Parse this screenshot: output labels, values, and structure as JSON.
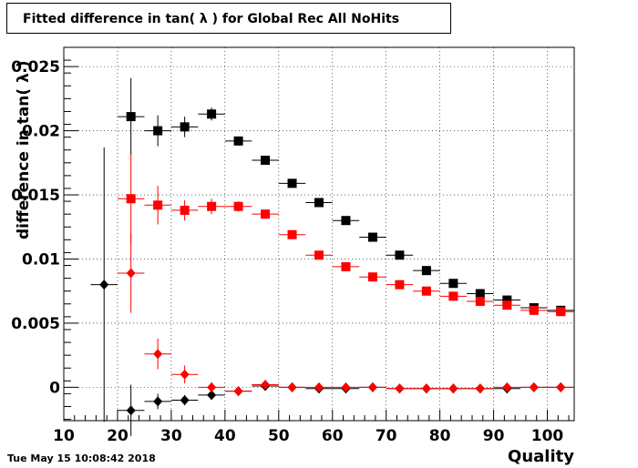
{
  "title": "Fitted difference in tan( λ ) for Global Rec All NoHits",
  "timestamp": "Tue May 15 10:08:42 2018",
  "chart_data": {
    "type": "scatter",
    "xlabel": "Quality",
    "ylabel": "difference in tan( λ )",
    "xlim": [
      10,
      105
    ],
    "ylim": [
      -0.0026,
      0.0265
    ],
    "grid": true,
    "x_ticks": [
      {
        "value": 10,
        "label": "10"
      },
      {
        "value": 20,
        "label": "20"
      },
      {
        "value": 30,
        "label": "30"
      },
      {
        "value": 40,
        "label": "40"
      },
      {
        "value": 50,
        "label": "50"
      },
      {
        "value": 60,
        "label": "60"
      },
      {
        "value": 70,
        "label": "70"
      },
      {
        "value": 80,
        "label": "80"
      },
      {
        "value": 90,
        "label": "90"
      },
      {
        "value": 100,
        "label": "100"
      }
    ],
    "y_ticks": [
      {
        "value": 0,
        "label": "0"
      },
      {
        "value": 0.005,
        "label": "0.005"
      },
      {
        "value": 0.01,
        "label": "0.01"
      },
      {
        "value": 0.015,
        "label": "0.015"
      },
      {
        "value": 0.02,
        "label": "0.02"
      },
      {
        "value": 0.025,
        "label": "0.025"
      }
    ],
    "series": [
      {
        "marker": "square",
        "color": "#000000",
        "points": [
          {
            "x": 22.5,
            "y": 0.0211,
            "err": 0.003
          },
          {
            "x": 27.5,
            "y": 0.02,
            "err": 0.0012
          },
          {
            "x": 32.5,
            "y": 0.0203,
            "err": 0.0008
          },
          {
            "x": 37.5,
            "y": 0.0213,
            "err": 0.0005
          },
          {
            "x": 42.5,
            "y": 0.0192,
            "err": 0.0003
          },
          {
            "x": 47.5,
            "y": 0.0177,
            "err": 0.0002
          },
          {
            "x": 52.5,
            "y": 0.0159,
            "err": 0.0002
          },
          {
            "x": 57.5,
            "y": 0.0144,
            "err": 0.0002
          },
          {
            "x": 62.5,
            "y": 0.013,
            "err": 0.0002
          },
          {
            "x": 67.5,
            "y": 0.0117,
            "err": 0.0002
          },
          {
            "x": 72.5,
            "y": 0.0103,
            "err": 0.0002
          },
          {
            "x": 77.5,
            "y": 0.0091,
            "err": 0.0002
          },
          {
            "x": 82.5,
            "y": 0.0081,
            "err": 0.0002
          },
          {
            "x": 87.5,
            "y": 0.0073,
            "err": 0.0002
          },
          {
            "x": 92.5,
            "y": 0.0068,
            "err": 0.0002
          },
          {
            "x": 97.5,
            "y": 0.0062,
            "err": 0.0002
          },
          {
            "x": 102.5,
            "y": 0.006,
            "err": 0.0002
          }
        ]
      },
      {
        "marker": "square",
        "color": "#ff0000",
        "points": [
          {
            "x": 22.5,
            "y": 0.0147,
            "err": 0.0035
          },
          {
            "x": 27.5,
            "y": 0.0142,
            "err": 0.0015
          },
          {
            "x": 32.5,
            "y": 0.0138,
            "err": 0.0008
          },
          {
            "x": 37.5,
            "y": 0.0141,
            "err": 0.0006
          },
          {
            "x": 42.5,
            "y": 0.0141,
            "err": 0.0004
          },
          {
            "x": 47.5,
            "y": 0.0135,
            "err": 0.0003
          },
          {
            "x": 52.5,
            "y": 0.0119,
            "err": 0.0002
          },
          {
            "x": 57.5,
            "y": 0.0103,
            "err": 0.0002
          },
          {
            "x": 62.5,
            "y": 0.0094,
            "err": 0.0002
          },
          {
            "x": 67.5,
            "y": 0.0086,
            "err": 0.0002
          },
          {
            "x": 72.5,
            "y": 0.008,
            "err": 0.0002
          },
          {
            "x": 77.5,
            "y": 0.0075,
            "err": 0.0002
          },
          {
            "x": 82.5,
            "y": 0.0071,
            "err": 0.0002
          },
          {
            "x": 87.5,
            "y": 0.0067,
            "err": 0.0002
          },
          {
            "x": 92.5,
            "y": 0.0064,
            "err": 0.0002
          },
          {
            "x": 97.5,
            "y": 0.006,
            "err": 0.0002
          },
          {
            "x": 102.5,
            "y": 0.0059,
            "err": 0.0002
          }
        ]
      },
      {
        "marker": "diamond",
        "color": "#000000",
        "points": [
          {
            "x": 17.5,
            "y": 0.008,
            "err": 0.0107
          },
          {
            "x": 22.5,
            "y": -0.0018,
            "err": 0.002
          },
          {
            "x": 27.5,
            "y": -0.0011,
            "err": 0.0006
          },
          {
            "x": 32.5,
            "y": -0.001,
            "err": 0.0004
          },
          {
            "x": 37.5,
            "y": -0.0006,
            "err": 0.0002
          },
          {
            "x": 42.5,
            "y": -0.0003,
            "err": 0.0002
          },
          {
            "x": 47.5,
            "y": 0.0001,
            "err": 0.0001
          },
          {
            "x": 52.5,
            "y": 0.0,
            "err": 0.0001
          },
          {
            "x": 57.5,
            "y": -0.0001,
            "err": 0.0001
          },
          {
            "x": 62.5,
            "y": -0.0001,
            "err": 0.0001
          },
          {
            "x": 67.5,
            "y": 0.0,
            "err": 0.0001
          },
          {
            "x": 72.5,
            "y": -0.0001,
            "err": 0.0001
          },
          {
            "x": 77.5,
            "y": -0.0001,
            "err": 0.0001
          },
          {
            "x": 82.5,
            "y": -0.0001,
            "err": 0.0001
          },
          {
            "x": 87.5,
            "y": -0.0001,
            "err": 0.0001
          },
          {
            "x": 92.5,
            "y": -0.0001,
            "err": 0.0001
          },
          {
            "x": 97.5,
            "y": 0.0,
            "err": 0.0001
          },
          {
            "x": 102.5,
            "y": 0.0,
            "err": 0.0001
          }
        ]
      },
      {
        "marker": "diamond",
        "color": "#ff0000",
        "points": [
          {
            "x": 22.5,
            "y": 0.0089,
            "err": 0.0031
          },
          {
            "x": 27.5,
            "y": 0.0026,
            "err": 0.0012
          },
          {
            "x": 32.5,
            "y": 0.001,
            "err": 0.0007
          },
          {
            "x": 37.5,
            "y": 0.0,
            "err": 0.0004
          },
          {
            "x": 42.5,
            "y": -0.0003,
            "err": 0.0002
          },
          {
            "x": 47.5,
            "y": 0.0002,
            "err": 0.0002
          },
          {
            "x": 52.5,
            "y": 0.0,
            "err": 0.0001
          },
          {
            "x": 57.5,
            "y": 0.0,
            "err": 0.0001
          },
          {
            "x": 62.5,
            "y": 0.0,
            "err": 0.0001
          },
          {
            "x": 67.5,
            "y": 0.0,
            "err": 0.0001
          },
          {
            "x": 72.5,
            "y": -0.0001,
            "err": 0.0001
          },
          {
            "x": 77.5,
            "y": -0.0001,
            "err": 0.0001
          },
          {
            "x": 82.5,
            "y": -0.0001,
            "err": 0.0001
          },
          {
            "x": 87.5,
            "y": -0.0001,
            "err": 0.0001
          },
          {
            "x": 92.5,
            "y": 0.0,
            "err": 0.0001
          },
          {
            "x": 97.5,
            "y": 0.0,
            "err": 0.0001
          },
          {
            "x": 102.5,
            "y": 0.0,
            "err": 0.0001
          }
        ]
      }
    ]
  }
}
